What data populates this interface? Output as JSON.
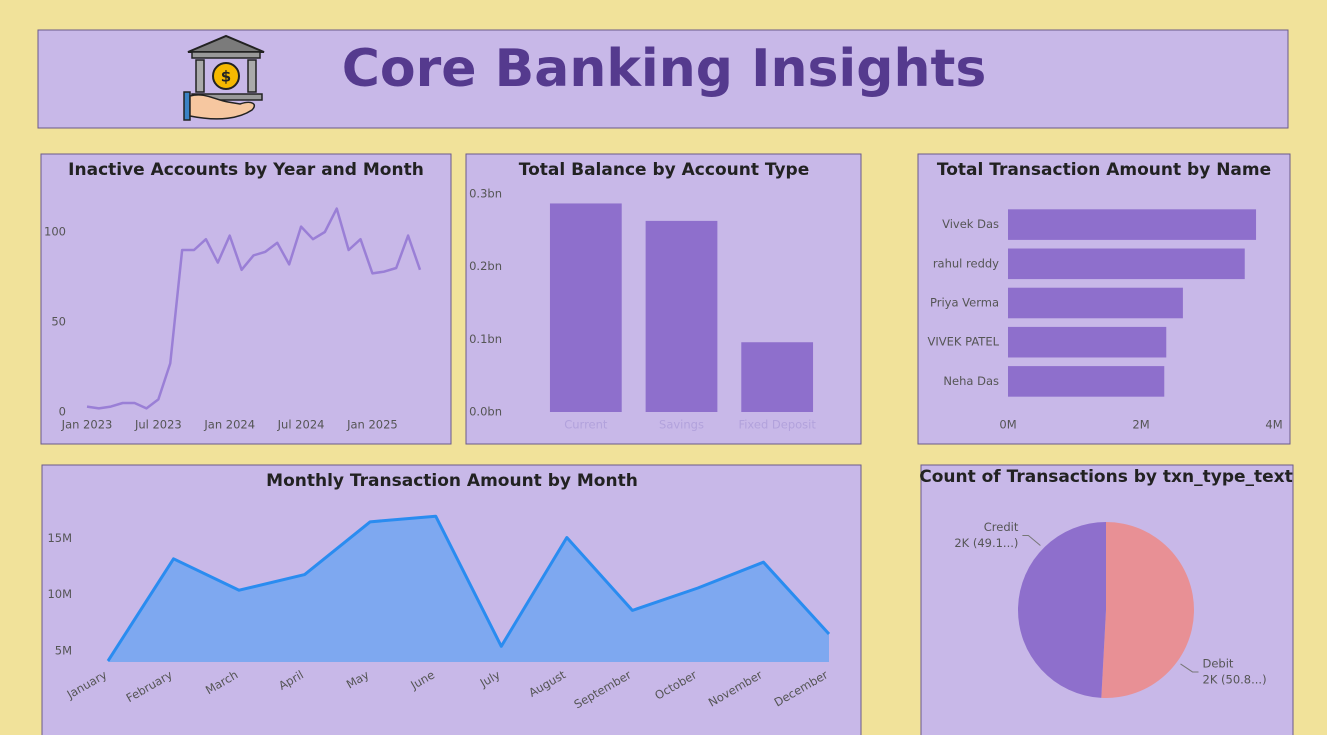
{
  "header": {
    "title": "Core Banking Insights",
    "icon_symbol": "$"
  },
  "chart_data": [
    {
      "type": "line",
      "title": "Inactive Accounts by Year and Month",
      "color": "#9a7fd6",
      "x": [
        "2023-01",
        "2023-02",
        "2023-03",
        "2023-04",
        "2023-05",
        "2023-06",
        "2023-07",
        "2023-08",
        "2023-09",
        "2023-10",
        "2023-11",
        "2023-12",
        "2024-01",
        "2024-02",
        "2024-03",
        "2024-04",
        "2024-05",
        "2024-06",
        "2024-07",
        "2024-08",
        "2024-09",
        "2024-10",
        "2024-11",
        "2024-12",
        "2025-01",
        "2025-02",
        "2025-03",
        "2025-04",
        "2025-05"
      ],
      "values": [
        3,
        2,
        3,
        5,
        5,
        2,
        7,
        27,
        90,
        90,
        96,
        83,
        98,
        79,
        87,
        89,
        94,
        82,
        103,
        96,
        100,
        113,
        90,
        96,
        77,
        78,
        80,
        98,
        79
      ],
      "xticks": [
        {
          "value": "2023-01",
          "label": "Jan 2023"
        },
        {
          "value": "2023-07",
          "label": "Jul 2023"
        },
        {
          "value": "2024-01",
          "label": "Jan 2024"
        },
        {
          "value": "2024-07",
          "label": "Jul 2024"
        },
        {
          "value": "2025-01",
          "label": "Jan 2025"
        }
      ],
      "ylim": [
        0,
        120
      ],
      "yticks": [
        0,
        50,
        100
      ]
    },
    {
      "type": "bar",
      "title": "Total Balance by Account Type",
      "color": "#8e6fcc",
      "categories": [
        "Current",
        "Savings",
        "Fixed Deposit"
      ],
      "values": [
        0.287,
        0.263,
        0.096
      ],
      "ylim": [
        0,
        0.3
      ],
      "yticks": [
        {
          "value": 0,
          "label": "0.0bn"
        },
        {
          "value": 0.1,
          "label": "0.1bn"
        },
        {
          "value": 0.2,
          "label": "0.2bn"
        },
        {
          "value": 0.3,
          "label": "0.3bn"
        }
      ]
    },
    {
      "type": "bar",
      "orientation": "horizontal",
      "title": "Total Transaction Amount by Name",
      "color": "#8e6fcc",
      "categories": [
        "Vivek Das",
        "rahul reddy",
        "Priya Verma",
        "VIVEK PATEL",
        "Neha Das"
      ],
      "values": [
        3.73,
        3.56,
        2.63,
        2.38,
        2.35
      ],
      "xlim": [
        0,
        4
      ],
      "xticks": [
        {
          "value": 0,
          "label": "0M"
        },
        {
          "value": 2,
          "label": "2M"
        },
        {
          "value": 4,
          "label": "4M"
        }
      ]
    },
    {
      "type": "area",
      "title": "Monthly Transaction Amount by Month",
      "color": "#2a8cf0",
      "fill": "#7ea8f0",
      "categories": [
        "January",
        "February",
        "March",
        "April",
        "May",
        "June",
        "July",
        "August",
        "September",
        "October",
        "November",
        "December"
      ],
      "values": [
        4.1,
        13.2,
        10.4,
        11.8,
        16.5,
        17.0,
        5.4,
        15.1,
        8.6,
        10.6,
        12.9,
        6.5
      ],
      "ylim": [
        4,
        18
      ],
      "yticks": [
        {
          "value": 5,
          "label": "5M"
        },
        {
          "value": 10,
          "label": "10M"
        },
        {
          "value": 15,
          "label": "15M"
        }
      ]
    },
    {
      "type": "pie",
      "title": "Count of Transactions by txn_type_text",
      "categories": [
        "Debit",
        "Credit"
      ],
      "values": [
        50.8,
        49.1
      ],
      "value_labels": [
        "2K (50.8...)",
        "2K (49.1...)"
      ],
      "colors": [
        "#e89095",
        "#8e6fcc"
      ]
    }
  ]
}
